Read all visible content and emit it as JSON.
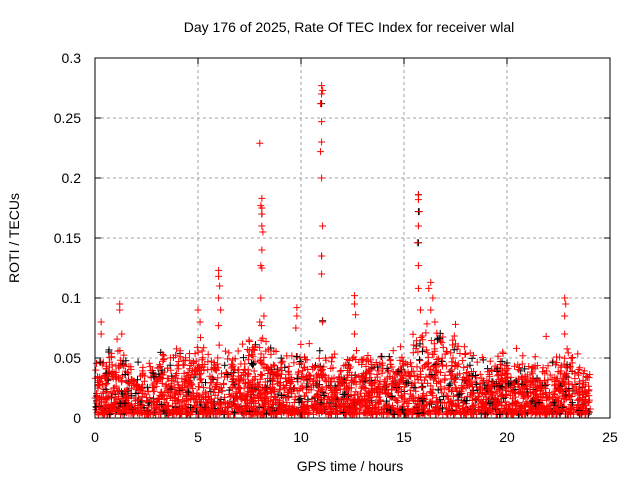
{
  "chart_data": {
    "type": "scatter",
    "title": "Day 176 of 2025, Rate Of TEC Index for receiver wlal",
    "xlabel": "GPS time / hours",
    "ylabel": "ROTI / TECUs",
    "xlim": [
      0,
      25
    ],
    "ylim": [
      0,
      0.3
    ],
    "xticks": [
      "0",
      "5",
      "10",
      "15",
      "20",
      "25"
    ],
    "yticks": [
      "0",
      "0.05",
      "0.1",
      "0.15",
      "0.2",
      "0.25",
      "0.3"
    ],
    "xtick_values": [
      0,
      5,
      10,
      15,
      20,
      25
    ],
    "ytick_values": [
      0,
      0.05,
      0.1,
      0.15,
      0.2,
      0.25,
      0.3
    ],
    "grid": true,
    "marker": "+",
    "colors": {
      "primary": "#ff0000",
      "secondary": "#000000",
      "grid": "#a0a0a0"
    },
    "baseline_envelope": {
      "hours": [
        0,
        1,
        2,
        3,
        4,
        5,
        6,
        7,
        8,
        9,
        10,
        11,
        12,
        13,
        14,
        15,
        16,
        17,
        18,
        19,
        20,
        21,
        22,
        23,
        24
      ],
      "typical_max": [
        0.04,
        0.05,
        0.035,
        0.045,
        0.045,
        0.055,
        0.05,
        0.045,
        0.06,
        0.04,
        0.05,
        0.045,
        0.04,
        0.045,
        0.045,
        0.05,
        0.065,
        0.06,
        0.05,
        0.04,
        0.045,
        0.04,
        0.04,
        0.05,
        0.03
      ]
    },
    "peaks": [
      [
        0.3,
        0.08
      ],
      [
        0.3,
        0.07
      ],
      [
        1.2,
        0.095
      ],
      [
        1.2,
        0.09
      ],
      [
        1.3,
        0.07
      ],
      [
        5.0,
        0.09
      ],
      [
        5.1,
        0.08
      ],
      [
        6.0,
        0.123
      ],
      [
        6.0,
        0.118
      ],
      [
        6.05,
        0.11
      ],
      [
        6.0,
        0.1
      ],
      [
        6.1,
        0.09
      ],
      [
        6.0,
        0.077
      ],
      [
        8.0,
        0.229
      ],
      [
        8.1,
        0.183
      ],
      [
        8.05,
        0.177
      ],
      [
        8.1,
        0.175
      ],
      [
        8.1,
        0.17
      ],
      [
        8.1,
        0.16
      ],
      [
        8.15,
        0.155
      ],
      [
        8.1,
        0.14
      ],
      [
        8.05,
        0.127
      ],
      [
        8.1,
        0.125
      ],
      [
        8.05,
        0.1
      ],
      [
        8.2,
        0.085
      ],
      [
        8.0,
        0.08
      ],
      [
        9.8,
        0.092
      ],
      [
        9.8,
        0.085
      ],
      [
        9.75,
        0.075
      ],
      [
        10.4,
        0.062
      ],
      [
        11.0,
        0.277
      ],
      [
        11.05,
        0.273
      ],
      [
        11.0,
        0.27
      ],
      [
        10.95,
        0.262
      ],
      [
        11.0,
        0.247
      ],
      [
        11.0,
        0.23
      ],
      [
        10.95,
        0.222
      ],
      [
        11.0,
        0.2
      ],
      [
        11.05,
        0.16
      ],
      [
        11.0,
        0.135
      ],
      [
        11.0,
        0.12
      ],
      [
        11.05,
        0.08
      ],
      [
        12.6,
        0.102
      ],
      [
        12.6,
        0.095
      ],
      [
        12.65,
        0.086
      ],
      [
        12.6,
        0.07
      ],
      [
        15.7,
        0.186
      ],
      [
        15.7,
        0.182
      ],
      [
        15.75,
        0.172
      ],
      [
        15.7,
        0.16
      ],
      [
        15.65,
        0.146
      ],
      [
        15.7,
        0.127
      ],
      [
        15.7,
        0.108
      ],
      [
        15.8,
        0.09
      ],
      [
        16.3,
        0.113
      ],
      [
        16.2,
        0.108
      ],
      [
        16.4,
        0.1
      ],
      [
        16.3,
        0.09
      ],
      [
        16.5,
        0.08
      ],
      [
        17.5,
        0.078
      ],
      [
        21.9,
        0.068
      ],
      [
        22.8,
        0.1
      ],
      [
        22.85,
        0.095
      ],
      [
        22.8,
        0.085
      ],
      [
        22.8,
        0.07
      ]
    ],
    "secondary_peaks": [
      [
        8.1,
        0.17
      ],
      [
        11.0,
        0.262
      ],
      [
        11.0,
        0.135
      ],
      [
        11.05,
        0.081
      ],
      [
        15.7,
        0.186
      ],
      [
        15.7,
        0.172
      ],
      [
        15.7,
        0.146
      ]
    ]
  }
}
